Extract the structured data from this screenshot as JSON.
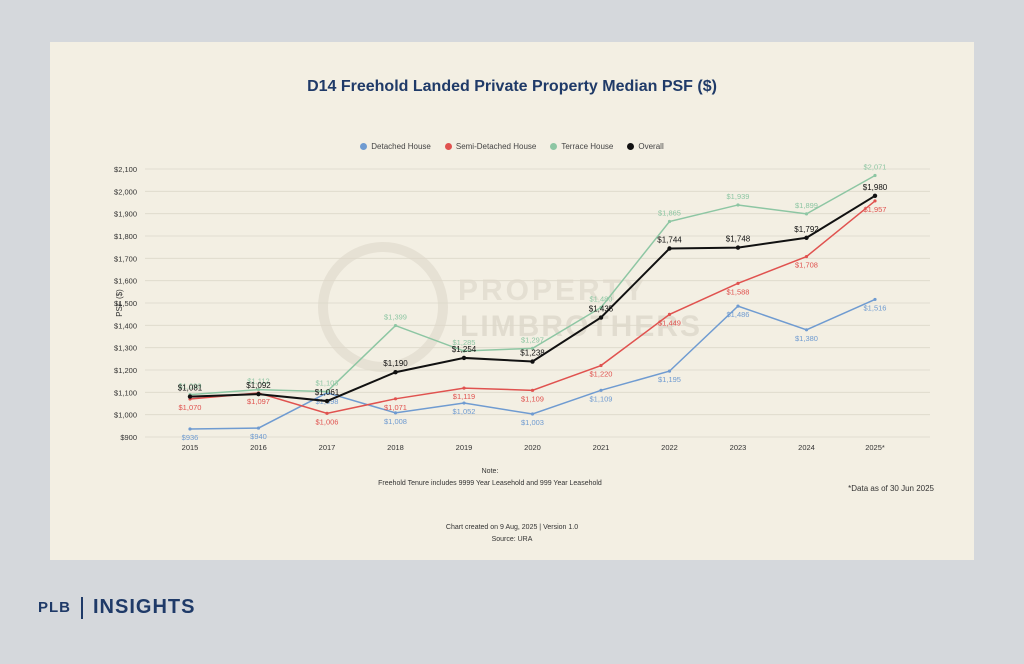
{
  "brand": {
    "left": "PLB",
    "right": "INSIGHTS"
  },
  "watermark": {
    "line1": "PROPERTY",
    "line2": "LIMBROTHERS"
  },
  "notes": {
    "heading": "Note:",
    "body": "Freehold Tenure includes 9999 Year Leasehold and 999 Year Leasehold",
    "asof": "*Data as of 30 Jun 2025",
    "created": "Chart created on 9 Aug, 2025 | Version 1.0",
    "source": "Source: URA"
  },
  "chart_data": {
    "type": "line",
    "title": "D14 Freehold Landed Private Property Median PSF ($)",
    "ylabel": "PSF ($)",
    "xlabel": "",
    "categories": [
      "2015",
      "2016",
      "2017",
      "2018",
      "2019",
      "2020",
      "2021",
      "2022",
      "2023",
      "2024",
      "2025*"
    ],
    "ylim": [
      900,
      2100
    ],
    "yticks": [
      900,
      1000,
      1100,
      1200,
      1300,
      1400,
      1500,
      1600,
      1700,
      1800,
      1900,
      2000,
      2100
    ],
    "ytick_labels": [
      "$900",
      "$1,000",
      "$1,100",
      "$1,200",
      "$1,300",
      "$1,400",
      "$1,500",
      "$1,600",
      "$1,700",
      "$1,800",
      "$1,900",
      "$2,000",
      "$2,100"
    ],
    "grid": true,
    "legend_position": "top-center",
    "series": [
      {
        "name": "Detached House",
        "color": "#6f9bd1",
        "values": [
          936,
          940,
          1098,
          1008,
          1052,
          1003,
          1109,
          1195,
          1486,
          1380,
          1516
        ],
        "labels": [
          "$936",
          "$940",
          "$1,098",
          "$1,008",
          "$1,052",
          "$1,003",
          "$1,109",
          "$1,195",
          "$1,486",
          "$1,380",
          "$1,516"
        ]
      },
      {
        "name": "Semi-Detached House",
        "color": "#e0524f",
        "values": [
          1070,
          1097,
          1006,
          1071,
          1119,
          1109,
          1220,
          1449,
          1588,
          1708,
          1957
        ],
        "labels": [
          "$1,070",
          "$1,097",
          "$1,006",
          "$1,071",
          "$1,119",
          "$1,109",
          "$1,220",
          "$1,449",
          "$1,588",
          "$1,708",
          "$1,957"
        ]
      },
      {
        "name": "Terrace House",
        "color": "#8dc6a3",
        "values": [
          1090,
          1112,
          1103,
          1399,
          1285,
          1297,
          1480,
          1865,
          1939,
          1899,
          2071
        ],
        "labels": [
          "$1,090",
          "$1,112",
          "$1,103",
          "$1,399",
          "$1,285",
          "$1,297",
          "$1,480",
          "$1,865",
          "$1,939",
          "$1,899",
          "$2,071"
        ]
      },
      {
        "name": "Overall",
        "color": "#111111",
        "values": [
          1081,
          1092,
          1061,
          1190,
          1254,
          1238,
          1435,
          1744,
          1748,
          1792,
          1980
        ],
        "labels": [
          "$1,081",
          "$1,092",
          "$1,061",
          "$1,190",
          "$1,254",
          "$1,238",
          "$1,435",
          "$1,744",
          "$1,748",
          "$1,792",
          "$1,980"
        ]
      }
    ]
  }
}
